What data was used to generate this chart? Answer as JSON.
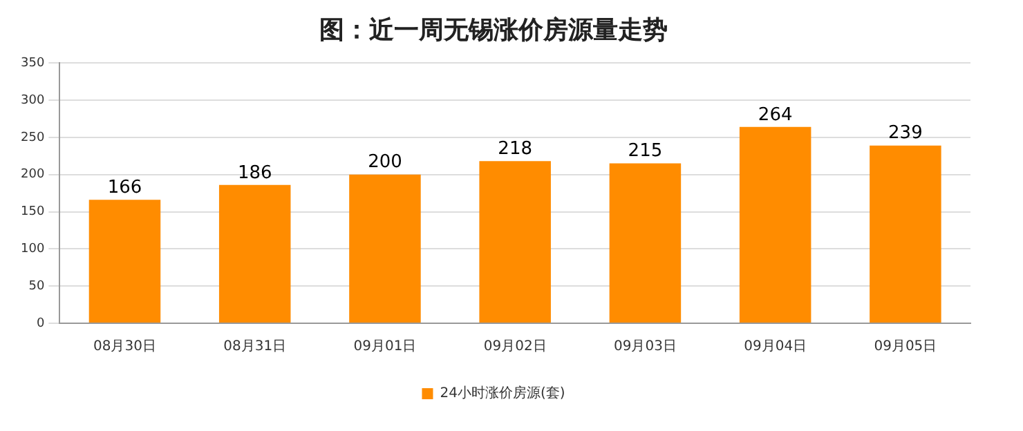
{
  "chart_data": {
    "type": "bar",
    "title": "图：近一周无锡涨价房源量走势",
    "categories": [
      "08月30日",
      "08月31日",
      "09月01日",
      "09月02日",
      "09月03日",
      "09月04日",
      "09月05日"
    ],
    "series": [
      {
        "name": "24小时涨价房源(套)",
        "color": "#ff8c00",
        "values": [
          166,
          186,
          200,
          218,
          215,
          264,
          239
        ]
      }
    ],
    "ylim": [
      0,
      350
    ],
    "yticks": [
      0,
      50,
      100,
      150,
      200,
      250,
      300,
      350
    ],
    "grid": "y",
    "legend": "bottom",
    "data_labels": true
  }
}
